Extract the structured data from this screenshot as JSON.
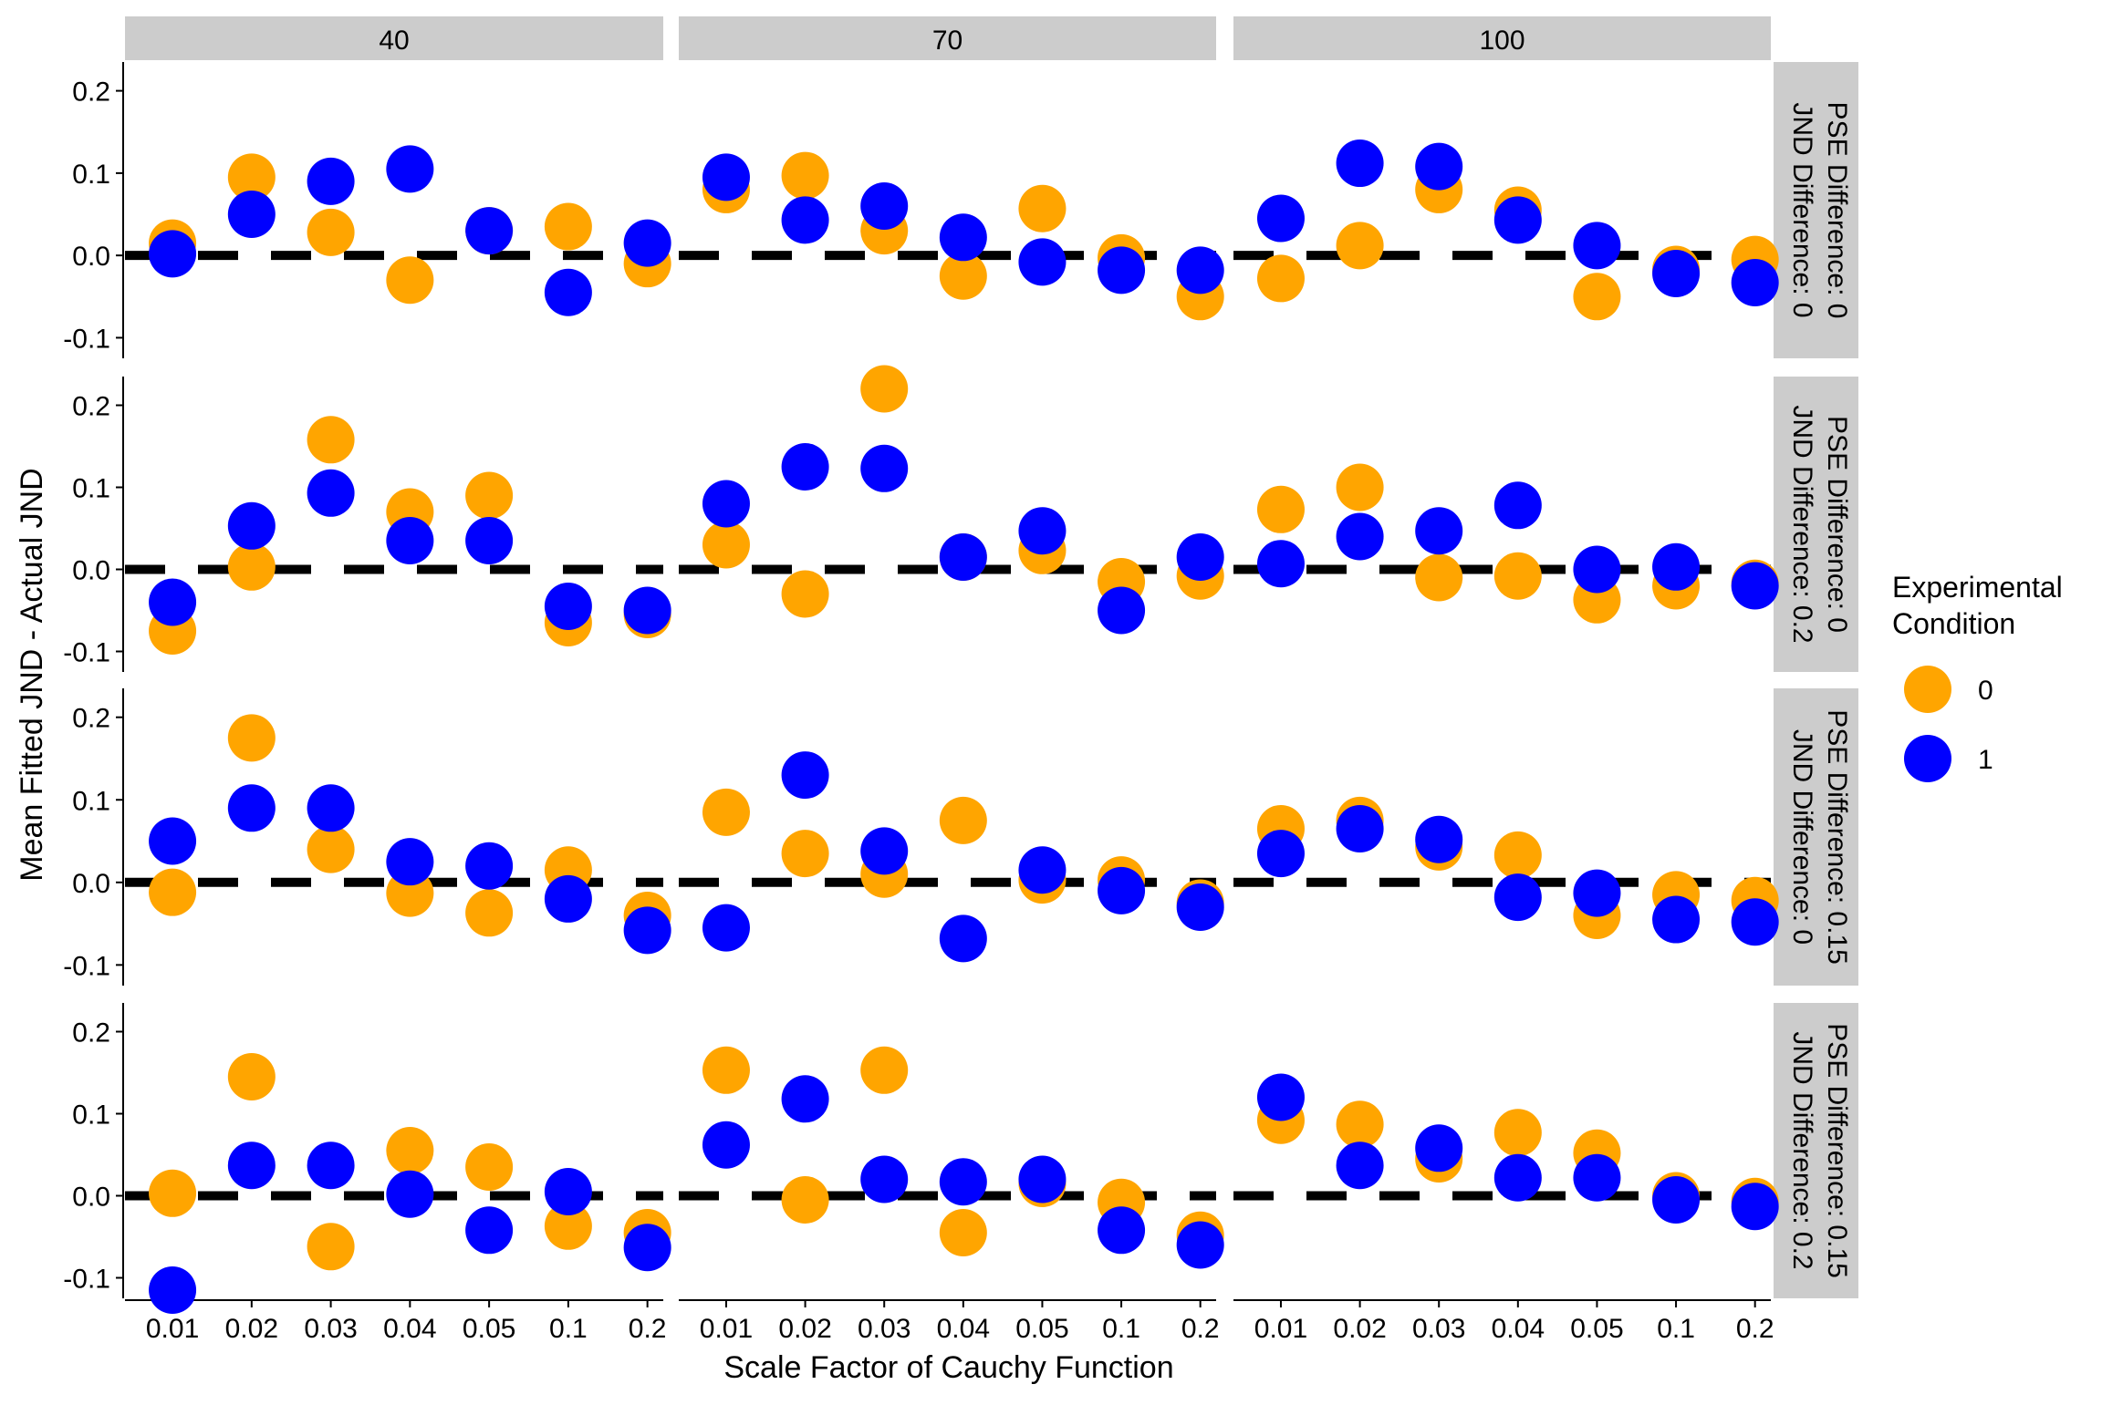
{
  "chart_data": {
    "type": "scatter",
    "title": "",
    "xlabel": "Scale Factor of Cauchy Function",
    "ylabel": "Mean Fitted JND - Actual JND",
    "categories": [
      "0.01",
      "0.02",
      "0.03",
      "0.04",
      "0.05",
      "0.1",
      "0.2"
    ],
    "col_facets": [
      "40",
      "70",
      "100"
    ],
    "row_facets": [
      [
        "PSE Difference: 0",
        "JND Difference: 0"
      ],
      [
        "PSE Difference: 0",
        "JND Difference: 0.2"
      ],
      [
        "PSE Difference: 0.15",
        "JND Difference: 0"
      ],
      [
        "PSE Difference: 0.15",
        "JND Difference: 0.2"
      ]
    ],
    "y_ticks": [
      "-0.1",
      "0.0",
      "0.1",
      "0.2"
    ],
    "y_tick_values": [
      -0.1,
      0.0,
      0.1,
      0.2
    ],
    "reference_line_y": 0,
    "ylim_per_row": [
      [
        -0.125,
        0.235
      ],
      [
        -0.125,
        0.235
      ],
      [
        -0.125,
        0.235
      ],
      [
        -0.125,
        0.235
      ]
    ],
    "legend": {
      "title_lines": [
        "Experimental",
        "Condition"
      ],
      "placement": "right",
      "entries": [
        {
          "label": "0",
          "color": "#FFA500"
        },
        {
          "label": "1",
          "color": "#0000FF"
        }
      ]
    },
    "colors": {
      "condition_0": "#FFA500",
      "condition_1": "#0000FF",
      "strip_bg": "#CCCCCC",
      "reference_line": "#000000"
    },
    "panels": [
      {
        "row": 0,
        "col": 0,
        "series": [
          {
            "name": "0",
            "values": [
              0.015,
              0.095,
              0.028,
              -0.03,
              0.03,
              0.035,
              -0.01
            ]
          },
          {
            "name": "1",
            "values": [
              0.002,
              0.05,
              0.09,
              0.105,
              0.03,
              -0.045,
              0.015
            ]
          }
        ]
      },
      {
        "row": 0,
        "col": 1,
        "series": [
          {
            "name": "0",
            "values": [
              0.08,
              0.097,
              0.03,
              -0.025,
              0.057,
              -0.003,
              -0.05
            ]
          },
          {
            "name": "1",
            "values": [
              0.095,
              0.043,
              0.06,
              0.022,
              -0.008,
              -0.018,
              -0.018
            ]
          }
        ]
      },
      {
        "row": 0,
        "col": 2,
        "series": [
          {
            "name": "0",
            "values": [
              -0.028,
              0.012,
              0.08,
              0.055,
              -0.05,
              -0.017,
              -0.005
            ]
          },
          {
            "name": "1",
            "values": [
              0.045,
              0.112,
              0.108,
              0.043,
              0.012,
              -0.022,
              -0.033
            ]
          }
        ]
      },
      {
        "row": 1,
        "col": 0,
        "series": [
          {
            "name": "0",
            "values": [
              -0.075,
              0.003,
              0.158,
              0.07,
              0.09,
              -0.065,
              -0.055
            ]
          },
          {
            "name": "1",
            "values": [
              -0.04,
              0.053,
              0.093,
              0.035,
              0.035,
              -0.045,
              -0.05
            ]
          }
        ]
      },
      {
        "row": 1,
        "col": 1,
        "series": [
          {
            "name": "0",
            "values": [
              0.03,
              -0.03,
              0.22,
              0.015,
              0.023,
              -0.015,
              -0.008
            ]
          },
          {
            "name": "1",
            "values": [
              0.08,
              0.125,
              0.123,
              0.015,
              0.047,
              -0.05,
              0.015
            ]
          }
        ]
      },
      {
        "row": 1,
        "col": 2,
        "series": [
          {
            "name": "0",
            "values": [
              0.073,
              0.1,
              -0.01,
              -0.008,
              -0.037,
              -0.02,
              -0.017
            ]
          },
          {
            "name": "1",
            "values": [
              0.007,
              0.04,
              0.047,
              0.078,
              0.0,
              0.003,
              -0.02
            ]
          }
        ]
      },
      {
        "row": 2,
        "col": 0,
        "series": [
          {
            "name": "0",
            "values": [
              -0.012,
              0.175,
              0.04,
              -0.013,
              -0.037,
              0.015,
              -0.04
            ]
          },
          {
            "name": "1",
            "values": [
              0.05,
              0.09,
              0.09,
              0.025,
              0.02,
              -0.02,
              -0.058
            ]
          }
        ]
      },
      {
        "row": 2,
        "col": 1,
        "series": [
          {
            "name": "0",
            "values": [
              0.085,
              0.035,
              0.01,
              0.075,
              0.003,
              0.003,
              -0.025
            ]
          },
          {
            "name": "1",
            "values": [
              -0.055,
              0.13,
              0.038,
              -0.068,
              0.015,
              -0.01,
              -0.03
            ]
          }
        ]
      },
      {
        "row": 2,
        "col": 2,
        "series": [
          {
            "name": "0",
            "values": [
              0.065,
              0.075,
              0.043,
              0.033,
              -0.04,
              -0.015,
              -0.022
            ]
          },
          {
            "name": "1",
            "values": [
              0.035,
              0.065,
              0.052,
              -0.018,
              -0.013,
              -0.045,
              -0.048
            ]
          }
        ]
      },
      {
        "row": 3,
        "col": 0,
        "series": [
          {
            "name": "0",
            "values": [
              0.003,
              0.145,
              -0.062,
              0.055,
              0.035,
              -0.037,
              -0.045
            ]
          },
          {
            "name": "1",
            "values": [
              -0.115,
              0.037,
              0.037,
              0.002,
              -0.042,
              0.005,
              -0.063
            ]
          }
        ]
      },
      {
        "row": 3,
        "col": 1,
        "series": [
          {
            "name": "0",
            "values": [
              0.153,
              -0.005,
              0.153,
              -0.045,
              0.015,
              -0.008,
              -0.048
            ]
          },
          {
            "name": "1",
            "values": [
              0.062,
              0.118,
              0.02,
              0.017,
              0.02,
              -0.042,
              -0.06
            ]
          }
        ]
      },
      {
        "row": 3,
        "col": 2,
        "series": [
          {
            "name": "0",
            "values": [
              0.092,
              0.087,
              0.045,
              0.077,
              0.052,
              0.0,
              -0.007
            ]
          },
          {
            "name": "1",
            "values": [
              0.12,
              0.037,
              0.058,
              0.022,
              0.022,
              -0.005,
              -0.013
            ]
          }
        ]
      }
    ]
  }
}
